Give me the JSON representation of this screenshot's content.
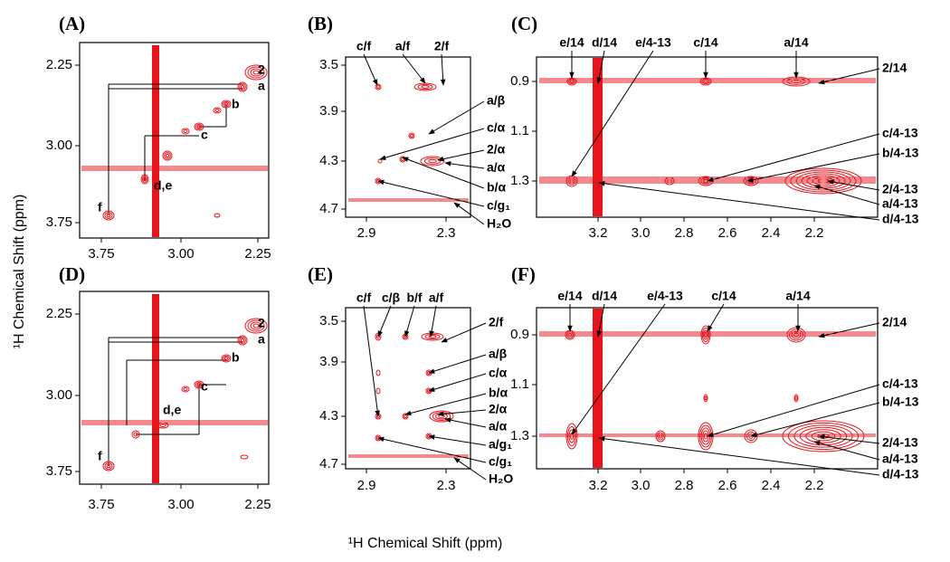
{
  "y_axis_label": "¹H Chemical Shift (ppm)",
  "x_axis_label": "¹H Chemical Shift (ppm)",
  "panels": [
    {
      "label": "(A)",
      "xticks": [
        "3.75",
        "3.00",
        "2.25"
      ],
      "yticks": [
        "2.25",
        "3.00",
        "3.75"
      ],
      "annotations": [
        "2",
        "a",
        "b",
        "c",
        "d,e",
        "f"
      ]
    },
    {
      "label": "(B)",
      "xticks": [
        "2.9",
        "2.3"
      ],
      "yticks": [
        "3.5",
        "3.9",
        "4.3",
        "4.7"
      ],
      "annotations": [
        "c/f",
        "a/f",
        "2/f",
        "a/β",
        "c/α",
        "2/α",
        "a/α",
        "b/α",
        "c/g₁",
        "H₂O"
      ]
    },
    {
      "label": "(C)",
      "xticks": [
        "3.2",
        "3.0",
        "2.8",
        "2.6",
        "2.4",
        "2.2"
      ],
      "yticks": [
        "0.9",
        "1.1",
        "1.3"
      ],
      "annotations": [
        "e/14",
        "d/14",
        "e/4-13",
        "c/14",
        "a/14",
        "2/14",
        "c/4-13",
        "b/4-13",
        "2/4-13",
        "a/4-13",
        "d/4-13"
      ]
    },
    {
      "label": "(D)",
      "xticks": [
        "3.75",
        "3.00",
        "2.25"
      ],
      "yticks": [
        "2.25",
        "3.00",
        "3.75"
      ],
      "annotations": [
        "2",
        "a",
        "b",
        "c",
        "d,e",
        "f"
      ]
    },
    {
      "label": "(E)",
      "xticks": [
        "2.9",
        "2.3"
      ],
      "yticks": [
        "3.5",
        "3.9",
        "4.3",
        "4.7"
      ],
      "annotations": [
        "c/f",
        "c/β",
        "b/f",
        "a/f",
        "2/f",
        "a/β",
        "c/α",
        "b/α",
        "2/α",
        "a/α",
        "a/g₁",
        "c/g₁",
        "H₂O"
      ]
    },
    {
      "label": "(F)",
      "xticks": [
        "3.2",
        "3.0",
        "2.8",
        "2.6",
        "2.4",
        "2.2"
      ],
      "yticks": [
        "0.9",
        "1.1",
        "1.3"
      ],
      "annotations": [
        "e/14",
        "d/14",
        "e/4-13",
        "c/14",
        "a/14",
        "2/14",
        "c/4-13",
        "b/4-13",
        "2/4-13",
        "a/4-13",
        "d/4-13"
      ]
    }
  ]
}
